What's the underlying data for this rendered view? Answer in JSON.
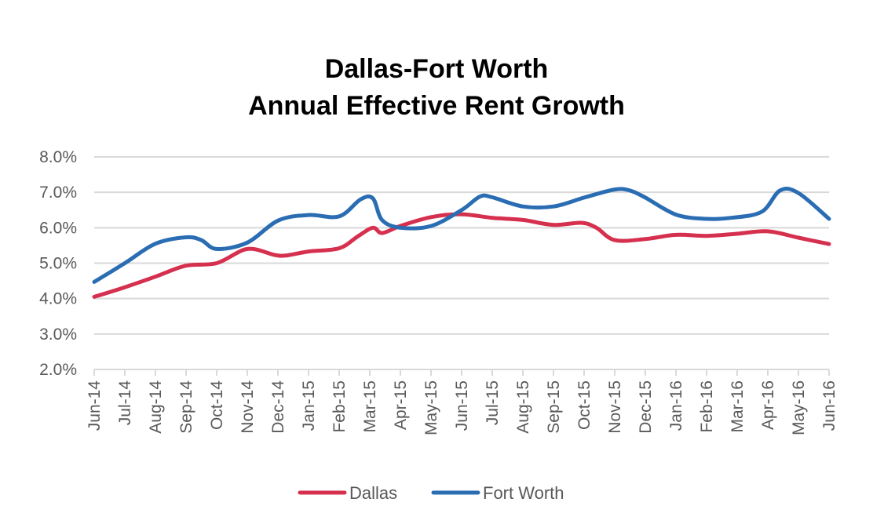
{
  "chart_data": {
    "type": "line",
    "title": [
      "Dallas-Fort Worth",
      "Annual Effective Rent Growth"
    ],
    "xlabel": "",
    "ylabel": "",
    "ylim": [
      0.02,
      0.08
    ],
    "yticks": [
      "2.0%",
      "3.0%",
      "4.0%",
      "5.0%",
      "6.0%",
      "7.0%",
      "8.0%"
    ],
    "ytick_values": [
      0.02,
      0.03,
      0.04,
      0.05,
      0.06,
      0.07,
      0.08
    ],
    "categories": [
      "Jun-14",
      "Jul-14",
      "Aug-14",
      "Sep-14",
      "Oct-14",
      "Nov-14",
      "Dec-14",
      "Jan-15",
      "Feb-15",
      "Mar-15",
      "Apr-15",
      "May-15",
      "Jun-15",
      "Jul-15",
      "Aug-15",
      "Sep-15",
      "Oct-15",
      "Nov-15",
      "Dec-15",
      "Jan-16",
      "Feb-16",
      "Mar-16",
      "Apr-16",
      "May-16",
      "Jun-16"
    ],
    "grid": true,
    "legend_position": "bottom",
    "series": [
      {
        "name": "Dallas",
        "color": "#d6304f",
        "x": [
          0,
          1,
          2,
          3,
          4,
          5,
          5.9,
          6.3,
          7,
          8,
          8.6,
          9.1,
          9.4,
          10,
          11,
          12,
          13,
          14,
          15,
          15.9,
          16.4,
          17,
          18,
          19,
          20,
          21,
          22,
          23,
          24
        ],
        "values": [
          0.0405,
          0.0432,
          0.0462,
          0.0493,
          0.05,
          0.054,
          0.0523,
          0.0522,
          0.0533,
          0.0542,
          0.0575,
          0.06,
          0.0585,
          0.0605,
          0.063,
          0.0638,
          0.0628,
          0.0622,
          0.0608,
          0.0614,
          0.06,
          0.0565,
          0.0568,
          0.058,
          0.0577,
          0.0583,
          0.059,
          0.0572,
          0.0554
        ]
      },
      {
        "name": "Fort Worth",
        "color": "#2a6db3",
        "x": [
          0,
          1,
          2,
          3,
          3.5,
          4,
          5,
          6,
          7,
          8,
          8.7,
          9.1,
          9.4,
          10,
          11,
          12,
          12.6,
          13,
          14,
          15,
          16,
          17,
          17.5,
          18,
          19,
          20,
          20.8,
          21.8,
          22.4,
          23,
          24
        ],
        "values": [
          0.0447,
          0.05,
          0.0555,
          0.0573,
          0.0565,
          0.054,
          0.0558,
          0.062,
          0.0636,
          0.0632,
          0.068,
          0.0683,
          0.0622,
          0.06,
          0.0605,
          0.065,
          0.0688,
          0.0686,
          0.066,
          0.066,
          0.0685,
          0.0708,
          0.0705,
          0.0685,
          0.0637,
          0.0625,
          0.0628,
          0.0645,
          0.0705,
          0.0698,
          0.0625
        ]
      }
    ]
  }
}
